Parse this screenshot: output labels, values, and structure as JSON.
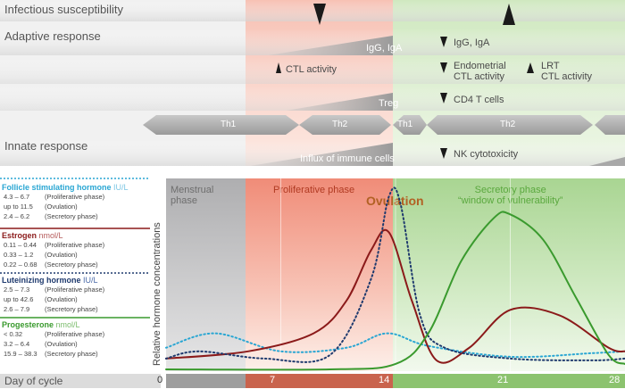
{
  "colors": {
    "menstrual": "#b9b9bb",
    "proliferative": "#f4a89a",
    "secretory": "#b6dba0",
    "fsh": "#29a6d3",
    "estrogen": "#8b1a1a",
    "lh": "#1f3a6e",
    "progesterone": "#3a9a2e",
    "ovulation_text": "#b26124",
    "dark_arrow": "#1a1a1a"
  },
  "header_rows": {
    "infectious": "Infectious susceptibility",
    "adaptive": "Adaptive response",
    "innate": "Innate response"
  },
  "immune_labels": {
    "igg_iga_band": "IgG, IgA",
    "igg_iga_secretory": "IgG, IgA",
    "ctl_activity": "CTL activity",
    "endometrial_ctl_1": "Endometrial",
    "endometrial_ctl_2": "CTL activity",
    "lrt_ctl_1": "LRT",
    "lrt_ctl_2": "CTL activity",
    "treg": "Treg",
    "cd4": "CD4 T cells",
    "th1_a": "Th1",
    "th2_a": "Th2",
    "th1_b": "Th1",
    "th2_b": "Th2",
    "influx": "Influx of immune cells",
    "nk": "NK cytotoxicity"
  },
  "legend": {
    "fsh": {
      "title": "Follicle stimulating hormone",
      "unit": "IU/L",
      "rows": [
        {
          "value": "4.3 – 6.7",
          "phase": "(Proliferative phase)"
        },
        {
          "value": "up to 11.5",
          "phase": "(Ovulation)"
        },
        {
          "value": "2.4 – 6.2",
          "phase": "(Secretory phase)"
        }
      ]
    },
    "estrogen": {
      "title": "Estrogen",
      "unit": "nmol/L",
      "rows": [
        {
          "value": "0.11 – 0.44",
          "phase": "(Proliferative phase)"
        },
        {
          "value": "0.33 – 1.2",
          "phase": "(Ovulation)"
        },
        {
          "value": "0.22 – 0.68",
          "phase": "(Secretory phase)"
        }
      ]
    },
    "lh": {
      "title": "Luteinizing hormone",
      "unit": "IU/L",
      "rows": [
        {
          "value": "2.5 – 7.3",
          "phase": "(Proliferative phase)"
        },
        {
          "value": "up to 42.6",
          "phase": "(Ovulation)"
        },
        {
          "value": "2.6 – 7.9",
          "phase": "(Secretory phase)"
        }
      ]
    },
    "progesterone": {
      "title": "Progesterone",
      "unit": "nmol/L",
      "rows": [
        {
          "value": "< 0.32",
          "phase": "(Proliferative phase)"
        },
        {
          "value": "3.2 – 6.4",
          "phase": "(Ovulation)"
        },
        {
          "value": "15.9 – 38.3",
          "phase": "(Secretory phase)"
        }
      ]
    }
  },
  "chart": {
    "y_label": "Relative hormone concentrations",
    "x_label": "Day of cycle",
    "phases": {
      "menstrual_1": "Menstrual",
      "menstrual_2": "phase",
      "proliferative": "Proliferative phase",
      "ovulation": "Ovulation",
      "secretory_1": "Secretory phase",
      "secretory_2": "“window of vulnerability”"
    },
    "days": [
      "0",
      "7",
      "14",
      "21",
      "28"
    ]
  },
  "chart_data": {
    "type": "line",
    "xlabel": "Day of cycle",
    "ylabel": "Relative hormone concentrations",
    "x_ticks": [
      0,
      7,
      14,
      21,
      28
    ],
    "note": "relative (unitless) curve shapes",
    "series": [
      {
        "name": "Follicle stimulating hormone",
        "style": "dotted",
        "color": "#29a6d3",
        "x": [
          0,
          3,
          7,
          11,
          13.5,
          16,
          21,
          26,
          28
        ],
        "y": [
          0.12,
          0.2,
          0.1,
          0.12,
          0.2,
          0.13,
          0.07,
          0.09,
          0.1
        ]
      },
      {
        "name": "Estrogen",
        "style": "solid",
        "color": "#8b1a1a",
        "x": [
          0,
          5,
          9,
          11,
          12.5,
          13.6,
          15,
          16.5,
          18.5,
          21,
          24,
          27,
          28
        ],
        "y": [
          0.06,
          0.1,
          0.2,
          0.38,
          0.66,
          0.76,
          0.38,
          0.05,
          0.12,
          0.33,
          0.3,
          0.12,
          0.1
        ]
      },
      {
        "name": "Luteinizing hormone",
        "style": "dotted",
        "color": "#1f3a6e",
        "x": [
          0,
          2,
          6,
          10,
          12.5,
          13.6,
          14.3,
          15.5,
          17,
          21,
          26,
          28
        ],
        "y": [
          0.06,
          0.1,
          0.06,
          0.08,
          0.5,
          0.96,
          0.92,
          0.3,
          0.12,
          0.06,
          0.05,
          0.06
        ]
      },
      {
        "name": "Progesterone",
        "style": "solid",
        "color": "#3a9a2e",
        "x": [
          0,
          10,
          14,
          16,
          18,
          20,
          21,
          23,
          25,
          27,
          28
        ],
        "y": [
          0.0,
          0.0,
          0.03,
          0.2,
          0.6,
          0.84,
          0.86,
          0.72,
          0.4,
          0.08,
          0.03
        ]
      }
    ]
  }
}
